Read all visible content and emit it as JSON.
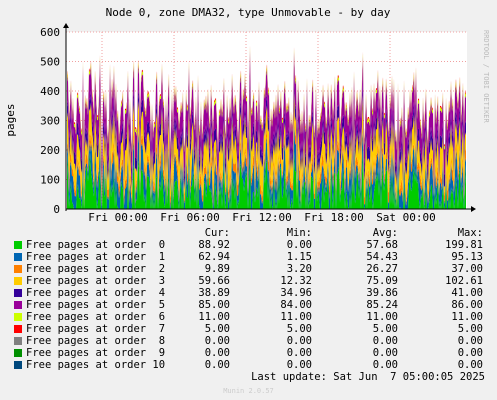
{
  "chart_data": {
    "type": "area",
    "title": "Node 0, zone DMA32, type Unmovable - by day",
    "ylabel": "pages",
    "side_label": "RRDTOOL / TOBI OETIKER",
    "ylim": [
      0,
      600
    ],
    "yticks": [
      0,
      100,
      200,
      300,
      400,
      500,
      600
    ],
    "xticks": [
      "Fri 00:00",
      "Fri 06:00",
      "Fri 12:00",
      "Fri 18:00",
      "Sat 00:00"
    ],
    "grid": true,
    "stacked": true,
    "series": [
      {
        "name": "Free pages at order  0",
        "color": "#00cc00",
        "cur": "88.92",
        "min": "0.00",
        "avg": "57.68",
        "max": "199.81"
      },
      {
        "name": "Free pages at order  1",
        "color": "#0066b3",
        "cur": "62.94",
        "min": "1.15",
        "avg": "54.43",
        "max": "95.13"
      },
      {
        "name": "Free pages at order  2",
        "color": "#ff8000",
        "cur": "9.89",
        "min": "3.20",
        "avg": "26.27",
        "max": "37.00"
      },
      {
        "name": "Free pages at order  3",
        "color": "#ffcc00",
        "cur": "59.66",
        "min": "12.32",
        "avg": "75.09",
        "max": "102.61"
      },
      {
        "name": "Free pages at order  4",
        "color": "#330099",
        "cur": "38.89",
        "min": "34.96",
        "avg": "39.86",
        "max": "41.00"
      },
      {
        "name": "Free pages at order  5",
        "color": "#990099",
        "cur": "85.00",
        "min": "84.00",
        "avg": "85.24",
        "max": "86.00"
      },
      {
        "name": "Free pages at order  6",
        "color": "#ccff00",
        "cur": "11.00",
        "min": "11.00",
        "avg": "11.00",
        "max": "11.00"
      },
      {
        "name": "Free pages at order  7",
        "color": "#ff0000",
        "cur": "5.00",
        "min": "5.00",
        "avg": "5.00",
        "max": "5.00"
      },
      {
        "name": "Free pages at order  8",
        "color": "#808080",
        "cur": "0.00",
        "min": "0.00",
        "avg": "0.00",
        "max": "0.00"
      },
      {
        "name": "Free pages at order  9",
        "color": "#008f00",
        "cur": "0.00",
        "min": "0.00",
        "avg": "0.00",
        "max": "0.00"
      },
      {
        "name": "Free pages at order 10",
        "color": "#00487d",
        "cur": "0.00",
        "min": "0.00",
        "avg": "0.00",
        "max": "0.00"
      }
    ]
  },
  "legend_headers": {
    "cur": "Cur:",
    "min": "Min:",
    "avg": "Avg:",
    "max": "Max:"
  },
  "last_update": "Last update: Sat Jun  7 05:00:05 2025",
  "footer": "Munin 2.0.57"
}
